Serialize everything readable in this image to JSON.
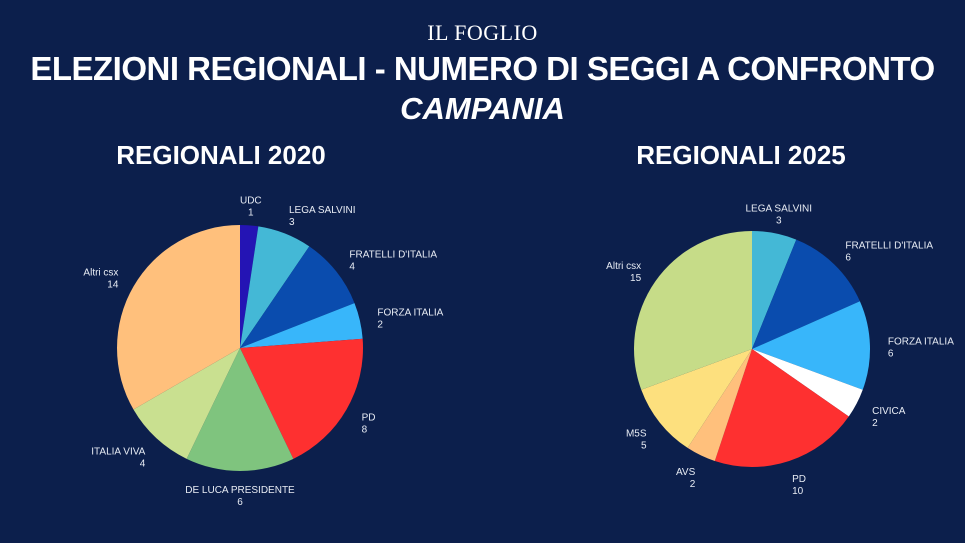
{
  "header": {
    "logo": "IL FOGLIO",
    "title": "ELEZIONI REGIONALI - NUMERO DI SEGGI A CONFRONTO",
    "subtitle": "CAMPANIA"
  },
  "chart_data": [
    {
      "type": "pie",
      "title": "REGIONALI 2020",
      "categories": [
        "UDC",
        "LEGA SALVINI",
        "FRATELLI D'ITALIA",
        "FORZA ITALIA",
        "PD",
        "DE LUCA PRESIDENTE",
        "ITALIA VIVA",
        "Altri csx"
      ],
      "values": [
        1,
        3,
        4,
        2,
        8,
        6,
        4,
        14
      ],
      "colors": [
        "#2414b4",
        "#44b8d6",
        "#0a4cae",
        "#38b6fa",
        "#fe3030",
        "#7fc47e",
        "#c9e090",
        "#ffc07c"
      ]
    },
    {
      "type": "pie",
      "title": "REGIONALI 2025",
      "categories": [
        "LEGA SALVINI",
        "FRATELLI D'ITALIA",
        "FORZA ITALIA",
        "CIVICA",
        "PD",
        "AVS",
        "M5S",
        "Altri csx"
      ],
      "values": [
        3,
        6,
        6,
        2,
        10,
        2,
        5,
        15
      ],
      "colors": [
        "#44b8d6",
        "#0a4cae",
        "#38b6fa",
        "#ffffff",
        "#fe3030",
        "#ffc07c",
        "#fde07e",
        "#c6dc88"
      ]
    }
  ]
}
